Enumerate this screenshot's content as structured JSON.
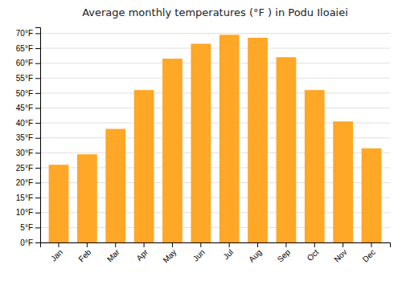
{
  "chart_data": {
    "type": "bar",
    "title": "Average monthly temperatures (°F ) in Podu Iloaiei",
    "categories": [
      "Jan",
      "Feb",
      "Mar",
      "Apr",
      "May",
      "Jun",
      "Jul",
      "Aug",
      "Sep",
      "Oct",
      "Nov",
      "Dec"
    ],
    "values": [
      26,
      29.5,
      38,
      51,
      61.5,
      66.5,
      69.5,
      68.5,
      62,
      51,
      40.5,
      31.5
    ],
    "color": "#FFA726",
    "ylim": [
      0,
      72
    ],
    "yticks": [
      {
        "value": 0,
        "label": "0°F"
      },
      {
        "value": 5,
        "label": "5°F"
      },
      {
        "value": 10,
        "label": "10°F"
      },
      {
        "value": 15,
        "label": "15°F"
      },
      {
        "value": 20,
        "label": "20°F"
      },
      {
        "value": 25,
        "label": "25°F"
      },
      {
        "value": 30,
        "label": "30°F"
      },
      {
        "value": 35,
        "label": "35°F"
      },
      {
        "value": 40,
        "label": "40°F"
      },
      {
        "value": 45,
        "label": "45°F"
      },
      {
        "value": 50,
        "label": "50°F"
      },
      {
        "value": 55,
        "label": "55°F"
      },
      {
        "value": 60,
        "label": "60°F"
      },
      {
        "value": 65,
        "label": "65°F"
      },
      {
        "value": 70,
        "label": "70°F"
      }
    ],
    "grid": true
  }
}
